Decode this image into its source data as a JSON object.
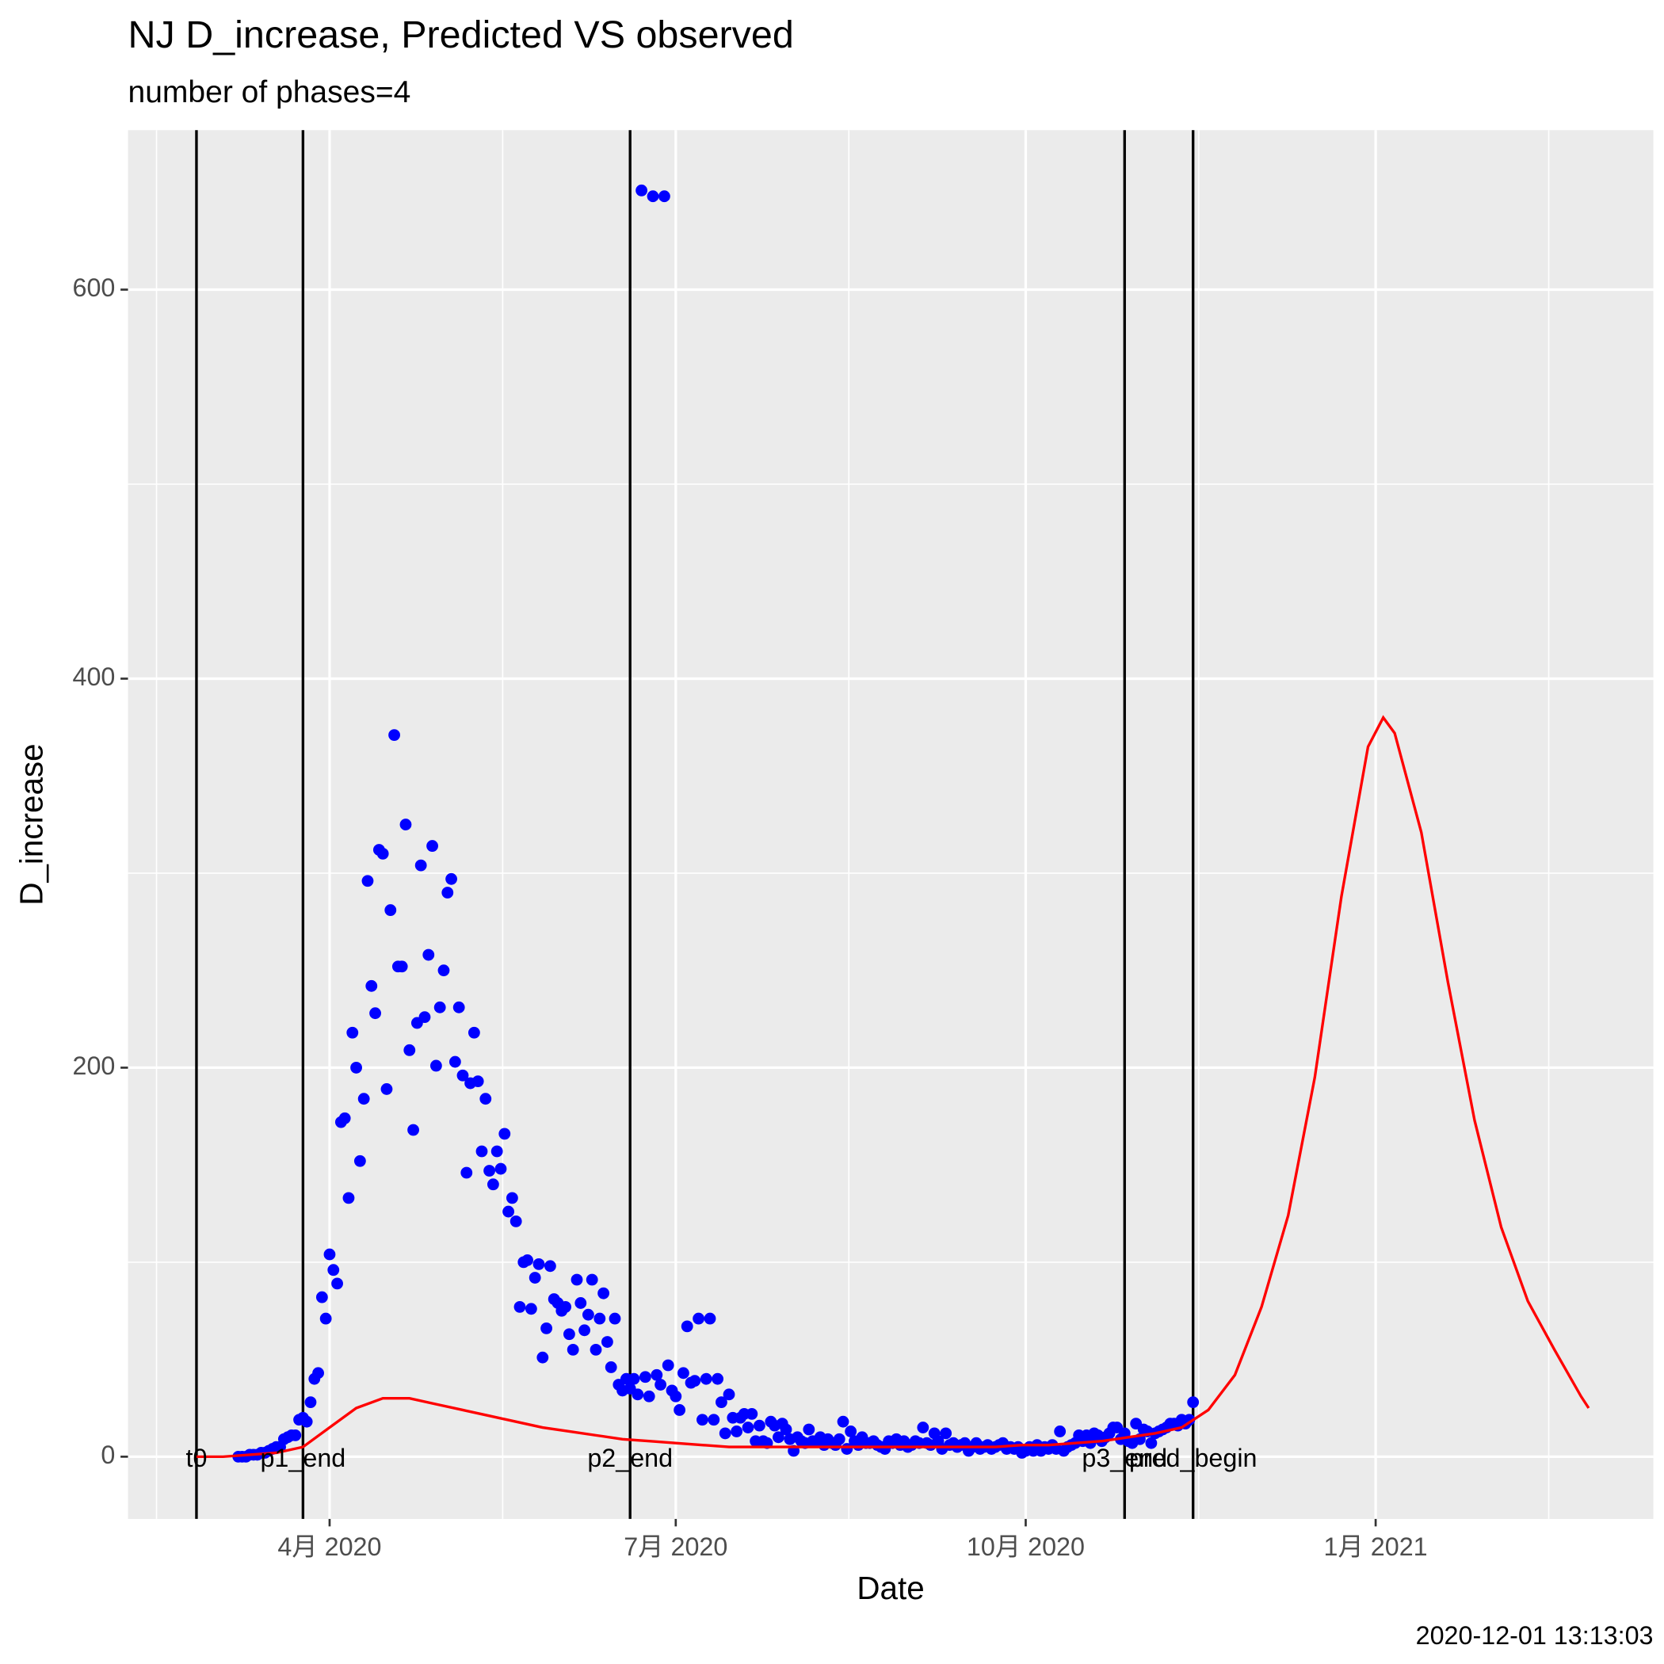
{
  "chart_data": {
    "type": "scatter",
    "title": "NJ D_increase, Predicted VS observed",
    "subtitle": "number of phases=4",
    "xlabel": "Date",
    "ylabel": "D_increase",
    "caption": "2020-12-01 13:13:03",
    "xlim": [
      "2020-02-08",
      "2021-03-15"
    ],
    "ylim": [
      -32,
      682
    ],
    "xticks": [
      {
        "value": "2020-04-01",
        "label": "4月 2020"
      },
      {
        "value": "2020-07-01",
        "label": "7月 2020"
      },
      {
        "value": "2020-10-01",
        "label": "10月 2020"
      },
      {
        "value": "2021-01-01",
        "label": "1月 2021"
      }
    ],
    "yticks": [
      0,
      200,
      400,
      600
    ],
    "grid": true,
    "vline_color": "#000000",
    "vlines": [
      {
        "x": "2020-02-26",
        "label": "t0"
      },
      {
        "x": "2020-03-25",
        "label": "p1_end"
      },
      {
        "x": "2020-06-19",
        "label": "p2_end"
      },
      {
        "x": "2020-10-27",
        "label": "p3_end"
      },
      {
        "x": "2020-11-14",
        "label": "pred_begin"
      }
    ],
    "series": [
      {
        "type": "scatter",
        "color": "#0000ff",
        "x": [
          "2020-03-08",
          "2020-03-09",
          "2020-03-10",
          "2020-03-11",
          "2020-03-12",
          "2020-03-13",
          "2020-03-14",
          "2020-03-15",
          "2020-03-16",
          "2020-03-17",
          "2020-03-18",
          "2020-03-19",
          "2020-03-20",
          "2020-03-21",
          "2020-03-22",
          "2020-03-23",
          "2020-03-24",
          "2020-03-25",
          "2020-03-26",
          "2020-03-27",
          "2020-03-28",
          "2020-03-29",
          "2020-03-30",
          "2020-03-31",
          "2020-04-01",
          "2020-04-02",
          "2020-04-03",
          "2020-04-04",
          "2020-04-05",
          "2020-04-06",
          "2020-04-07",
          "2020-04-08",
          "2020-04-09",
          "2020-04-10",
          "2020-04-11",
          "2020-04-12",
          "2020-04-13",
          "2020-04-14",
          "2020-04-15",
          "2020-04-16",
          "2020-04-17",
          "2020-04-18",
          "2020-04-19",
          "2020-04-20",
          "2020-04-21",
          "2020-04-22",
          "2020-04-23",
          "2020-04-24",
          "2020-04-25",
          "2020-04-26",
          "2020-04-27",
          "2020-04-28",
          "2020-04-29",
          "2020-04-30",
          "2020-05-01",
          "2020-05-02",
          "2020-05-03",
          "2020-05-04",
          "2020-05-05",
          "2020-05-06",
          "2020-05-07",
          "2020-05-08",
          "2020-05-09",
          "2020-05-10",
          "2020-05-11",
          "2020-05-12",
          "2020-05-13",
          "2020-05-14",
          "2020-05-15",
          "2020-05-16",
          "2020-05-17",
          "2020-05-18",
          "2020-05-19",
          "2020-05-20",
          "2020-05-21",
          "2020-05-22",
          "2020-05-23",
          "2020-05-24",
          "2020-05-25",
          "2020-05-26",
          "2020-05-27",
          "2020-05-28",
          "2020-05-29",
          "2020-05-30",
          "2020-05-31",
          "2020-06-01",
          "2020-06-02",
          "2020-06-03",
          "2020-06-04",
          "2020-06-05",
          "2020-06-06",
          "2020-06-07",
          "2020-06-08",
          "2020-06-09",
          "2020-06-10",
          "2020-06-11",
          "2020-06-12",
          "2020-06-13",
          "2020-06-14",
          "2020-06-15",
          "2020-06-16",
          "2020-06-17",
          "2020-06-18",
          "2020-06-19",
          "2020-06-20",
          "2020-06-21",
          "2020-06-22",
          "2020-06-23",
          "2020-06-24",
          "2020-06-25",
          "2020-06-26",
          "2020-06-27",
          "2020-06-28",
          "2020-06-29",
          "2020-06-30",
          "2020-07-01",
          "2020-07-02",
          "2020-07-03",
          "2020-07-04",
          "2020-07-05",
          "2020-07-06",
          "2020-07-07",
          "2020-07-08",
          "2020-07-09",
          "2020-07-10",
          "2020-07-11",
          "2020-07-12",
          "2020-07-13",
          "2020-07-14",
          "2020-07-15",
          "2020-07-16",
          "2020-07-17",
          "2020-07-18",
          "2020-07-19",
          "2020-07-20",
          "2020-07-21",
          "2020-07-22",
          "2020-07-23",
          "2020-07-24",
          "2020-07-25",
          "2020-07-26",
          "2020-07-27",
          "2020-07-28",
          "2020-07-29",
          "2020-07-30",
          "2020-07-31",
          "2020-08-01",
          "2020-08-02",
          "2020-08-03",
          "2020-08-04",
          "2020-08-05",
          "2020-08-06",
          "2020-08-07",
          "2020-08-08",
          "2020-08-09",
          "2020-08-10",
          "2020-08-11",
          "2020-08-12",
          "2020-08-13",
          "2020-08-14",
          "2020-08-15",
          "2020-08-16",
          "2020-08-17",
          "2020-08-18",
          "2020-08-19",
          "2020-08-20",
          "2020-08-21",
          "2020-08-22",
          "2020-08-23",
          "2020-08-24",
          "2020-08-25",
          "2020-08-26",
          "2020-08-27",
          "2020-08-28",
          "2020-08-29",
          "2020-08-30",
          "2020-08-31",
          "2020-09-01",
          "2020-09-02",
          "2020-09-03",
          "2020-09-04",
          "2020-09-05",
          "2020-09-06",
          "2020-09-07",
          "2020-09-08",
          "2020-09-09",
          "2020-09-10",
          "2020-09-11",
          "2020-09-12",
          "2020-09-13",
          "2020-09-14",
          "2020-09-15",
          "2020-09-16",
          "2020-09-17",
          "2020-09-18",
          "2020-09-19",
          "2020-09-20",
          "2020-09-21",
          "2020-09-22",
          "2020-09-23",
          "2020-09-24",
          "2020-09-25",
          "2020-09-26",
          "2020-09-27",
          "2020-09-28",
          "2020-09-29",
          "2020-09-30",
          "2020-10-01",
          "2020-10-02",
          "2020-10-03",
          "2020-10-04",
          "2020-10-05",
          "2020-10-06",
          "2020-10-07",
          "2020-10-08",
          "2020-10-09",
          "2020-10-10",
          "2020-10-11",
          "2020-10-12",
          "2020-10-13",
          "2020-10-14",
          "2020-10-15",
          "2020-10-16",
          "2020-10-17",
          "2020-10-18",
          "2020-10-19",
          "2020-10-20",
          "2020-10-21",
          "2020-10-22",
          "2020-10-23",
          "2020-10-24",
          "2020-10-25",
          "2020-10-26",
          "2020-10-27",
          "2020-10-28",
          "2020-10-29",
          "2020-10-30",
          "2020-10-31",
          "2020-11-01",
          "2020-11-02",
          "2020-11-03",
          "2020-11-04",
          "2020-11-05",
          "2020-11-06",
          "2020-11-07",
          "2020-11-08",
          "2020-11-09",
          "2020-11-10",
          "2020-11-11",
          "2020-11-12",
          "2020-11-13",
          "2020-11-14"
        ],
        "values": [
          0,
          0,
          0,
          1,
          1,
          1,
          2,
          2,
          3,
          4,
          5,
          5,
          9,
          10,
          11,
          11,
          19,
          20,
          18,
          28,
          40,
          43,
          82,
          71,
          104,
          96,
          89,
          172,
          174,
          133,
          218,
          200,
          152,
          184,
          296,
          242,
          228,
          312,
          310,
          189,
          281,
          371,
          252,
          252,
          325,
          209,
          168,
          223,
          304,
          226,
          258,
          314,
          201,
          231,
          250,
          290,
          297,
          203,
          231,
          196,
          146,
          192,
          218,
          193,
          157,
          184,
          147,
          140,
          157,
          148,
          166,
          126,
          133,
          121,
          77,
          100,
          101,
          76,
          92,
          99,
          51,
          66,
          98,
          81,
          79,
          75,
          77,
          63,
          55,
          91,
          79,
          65,
          73,
          91,
          55,
          71,
          84,
          59,
          46,
          71,
          37,
          34,
          40,
          35,
          40,
          32,
          651,
          41,
          31,
          648,
          42,
          37,
          648,
          47,
          34,
          31,
          24,
          43,
          67,
          38,
          39,
          71,
          19,
          40,
          71,
          19,
          40,
          28,
          12,
          32,
          20,
          13,
          20,
          22,
          15,
          22,
          8,
          16,
          8,
          7,
          18,
          16,
          10,
          17,
          14,
          9,
          3,
          10,
          8,
          7,
          14,
          8,
          8,
          10,
          6,
          9,
          7,
          6,
          9,
          18,
          4,
          13,
          8,
          6,
          10,
          7,
          7,
          8,
          6,
          5,
          4,
          8,
          7,
          9,
          6,
          8,
          5,
          6,
          8,
          7,
          15,
          7,
          6,
          12,
          8,
          4,
          12,
          6,
          7,
          5,
          6,
          7,
          3,
          5,
          7,
          4,
          5,
          6,
          4,
          5,
          6,
          7,
          4,
          5,
          4,
          5,
          2,
          3,
          5,
          3,
          6,
          3,
          5,
          4,
          6,
          4,
          13,
          3,
          5,
          6,
          7,
          11,
          8,
          11,
          7,
          12,
          11,
          8,
          10,
          12,
          15,
          15,
          9,
          12,
          8,
          7,
          17,
          9,
          14,
          13,
          7,
          12,
          13,
          14,
          15,
          17,
          17,
          16,
          19,
          17,
          19,
          28
        ]
      },
      {
        "type": "line",
        "color": "#ff0000",
        "x": [
          "2020-02-26",
          "2020-03-04",
          "2020-03-11",
          "2020-03-18",
          "2020-03-25",
          "2020-04-01",
          "2020-04-08",
          "2020-04-15",
          "2020-04-22",
          "2020-04-29",
          "2020-05-06",
          "2020-05-13",
          "2020-05-20",
          "2020-05-27",
          "2020-06-03",
          "2020-06-10",
          "2020-06-17",
          "2020-06-24",
          "2020-07-01",
          "2020-07-08",
          "2020-07-15",
          "2020-07-22",
          "2020-07-29",
          "2020-08-05",
          "2020-08-12",
          "2020-08-19",
          "2020-08-26",
          "2020-09-02",
          "2020-09-09",
          "2020-09-16",
          "2020-09-23",
          "2020-09-30",
          "2020-10-07",
          "2020-10-14",
          "2020-10-21",
          "2020-10-28",
          "2020-11-04",
          "2020-11-11",
          "2020-11-18",
          "2020-11-25",
          "2020-12-02",
          "2020-12-09",
          "2020-12-16",
          "2020-12-23",
          "2020-12-30",
          "2021-01-03",
          "2021-01-06",
          "2021-01-13",
          "2021-01-20",
          "2021-01-27",
          "2021-02-03",
          "2021-02-10",
          "2021-02-17",
          "2021-02-24",
          "2021-02-26"
        ],
        "values": [
          0,
          0,
          1,
          2,
          5,
          15,
          25,
          30,
          30,
          27,
          24,
          21,
          18,
          15,
          13,
          11,
          9,
          8,
          7,
          6,
          5,
          5,
          5,
          5,
          5,
          5,
          5,
          5,
          5,
          5,
          5,
          6,
          6,
          7,
          8,
          10,
          12,
          15,
          24,
          42,
          77,
          124,
          195,
          288,
          365,
          380,
          372,
          321,
          244,
          173,
          118,
          80,
          55,
          31,
          25
        ]
      }
    ]
  }
}
